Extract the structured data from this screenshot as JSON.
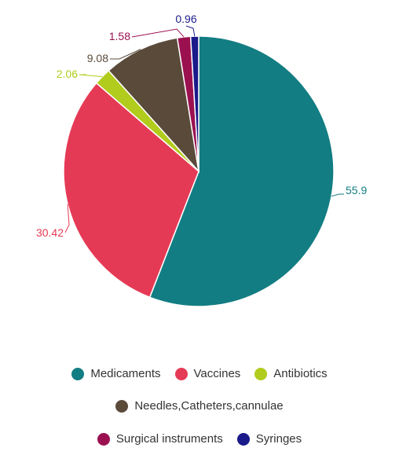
{
  "chart_data": {
    "type": "pie",
    "title": "",
    "slices": [
      {
        "name": "Medicaments",
        "value": 55.9,
        "label": "55.9",
        "color": "#127d82"
      },
      {
        "name": "Vaccines",
        "value": 30.42,
        "label": "30.42",
        "color": "#e53a55"
      },
      {
        "name": "Antibiotics",
        "value": 2.06,
        "label": "2.06",
        "color": "#b1cc1c"
      },
      {
        "name": "Needles,Catheters,cannulae",
        "value": 9.08,
        "label": "9.08",
        "color": "#5a4a3a"
      },
      {
        "name": "Surgical instruments",
        "value": 1.58,
        "label": "1.58",
        "color": "#9b1150"
      },
      {
        "name": "Syringes",
        "value": 0.96,
        "label": "0.96",
        "color": "#1a1a8a"
      }
    ],
    "start_angle": "12 o'clock",
    "direction": "clockwise",
    "legend_position": "bottom"
  },
  "legend": {
    "rows": [
      [
        "Medicaments",
        "Vaccines",
        "Antibiotics"
      ],
      [
        "Needles,Catheters,cannulae"
      ],
      [
        "Surgical instruments",
        "Syringes"
      ]
    ]
  }
}
